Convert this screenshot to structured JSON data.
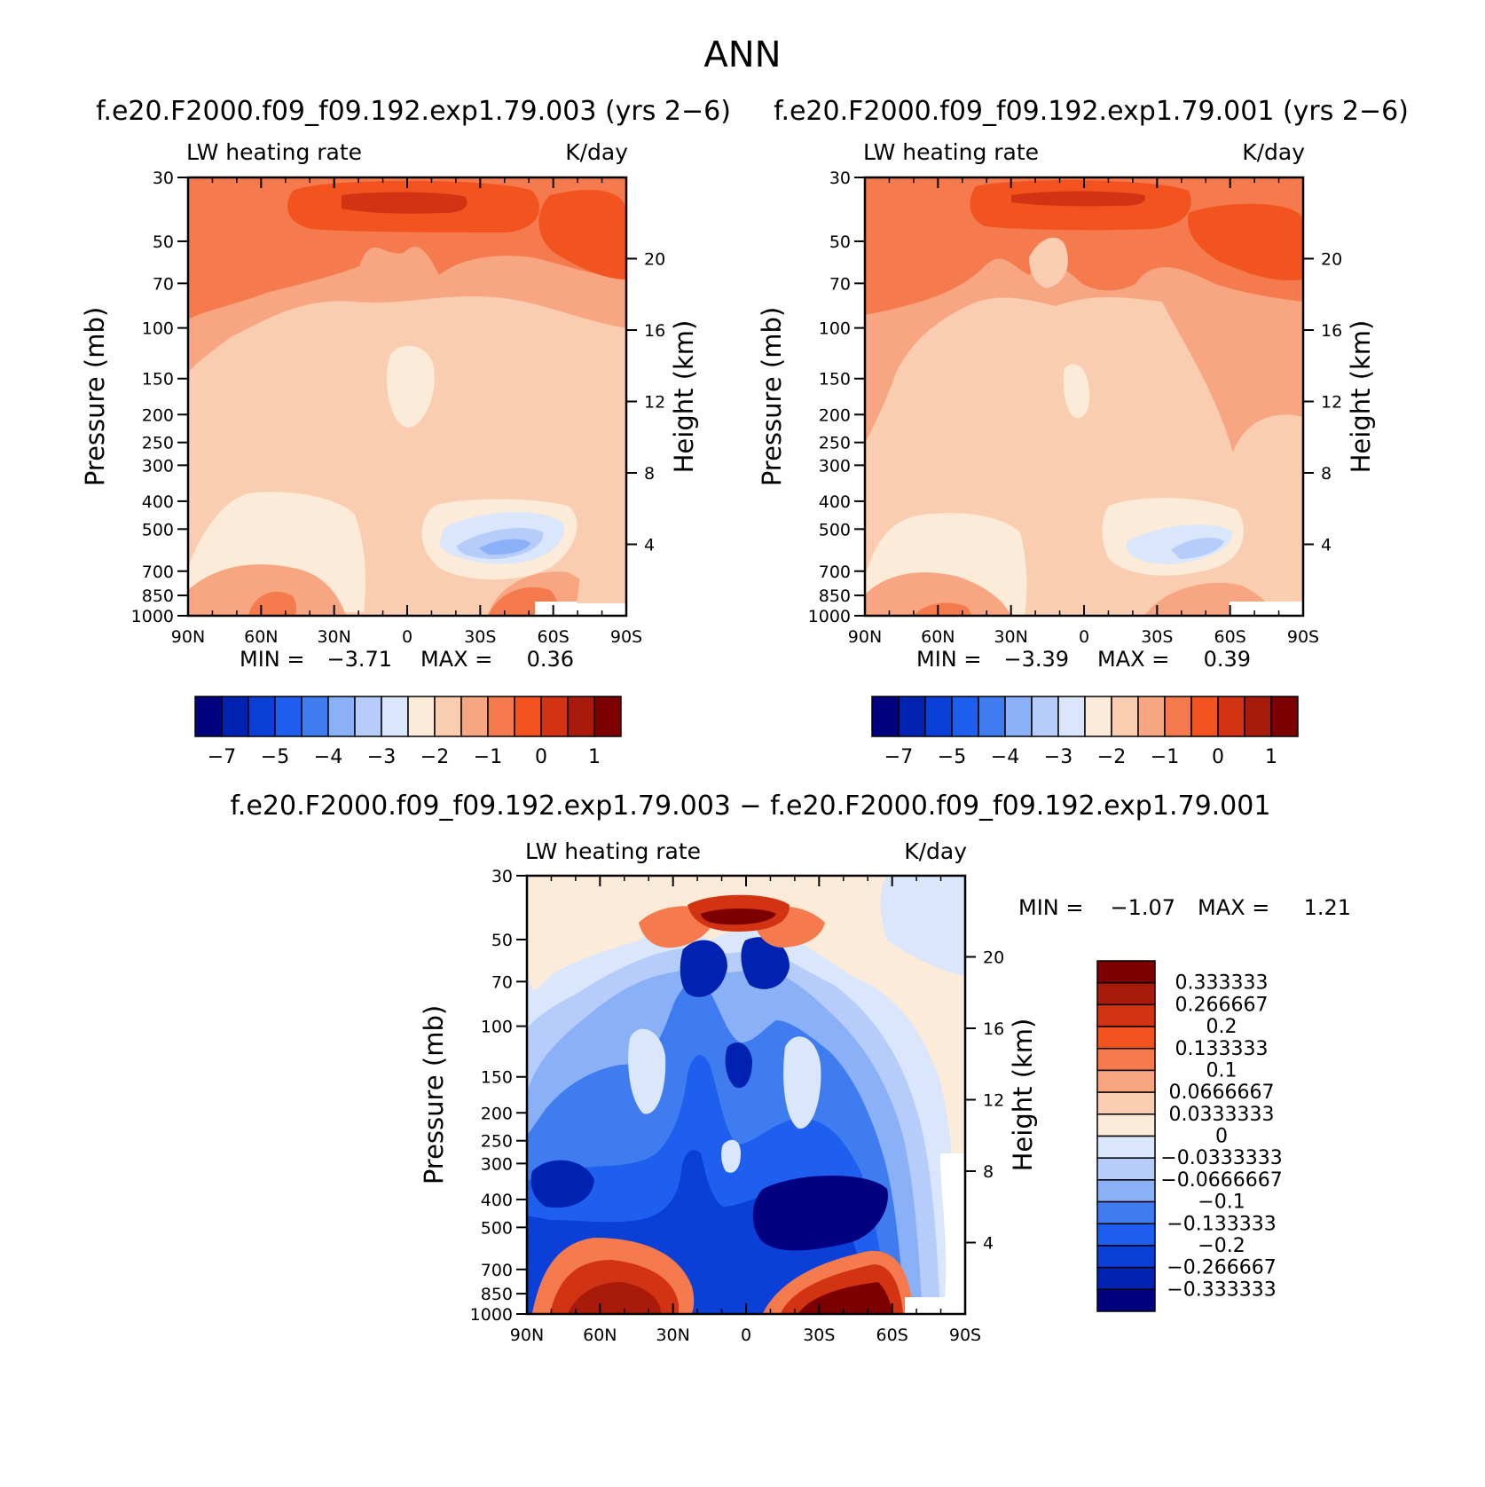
{
  "main_title": "ANN",
  "colors": {
    "ramp_abs": [
      "#000080",
      "#0022b0",
      "#0a3fd8",
      "#1f5ff0",
      "#3f7cf0",
      "#8ab0f8",
      "#b6ccfa",
      "#d9e6fb",
      "#fdebda",
      "#fbcdb0",
      "#f8a682",
      "#f57a4d",
      "#f2531f",
      "#d23312",
      "#a81a0a",
      "#7d0000"
    ],
    "ramp_diff": [
      "#000080",
      "#0022b0",
      "#0a3fd8",
      "#1f5ff0",
      "#3f7cf0",
      "#8ab0f8",
      "#b6ccfa",
      "#d9e6fb",
      "#fdebda",
      "#fbcdb0",
      "#f8a682",
      "#f57a4d",
      "#f2531f",
      "#d23312",
      "#a81a0a",
      "#7d0000"
    ]
  },
  "chart_data": [
    {
      "type": "heatmap",
      "title": "f.e20.F2000.f09_f09.192.exp1.79.003 (yrs 2−6)",
      "subtitle_left": "LW heating rate",
      "subtitle_right": "K/day",
      "ylabel": "Pressure (mb)",
      "ylabel_right": "Height (km)",
      "x_ticklabels": [
        "90N",
        "60N",
        "30N",
        "0",
        "30S",
        "60S",
        "90S"
      ],
      "y_ticks": [
        "30",
        "50",
        "70",
        "100",
        "150",
        "200",
        "250",
        "300",
        "400",
        "500",
        "700",
        "850",
        "1000"
      ],
      "y_right_ticks": [
        "20",
        "16",
        "12",
        "8",
        "4"
      ],
      "min_label": "MIN =",
      "min_value": "−3.71",
      "max_label": "MAX =",
      "max_value": "0.36",
      "colorbar_labels": [
        "−7",
        "−5",
        "−4",
        "−3",
        "−2",
        "−1",
        "0",
        "1"
      ]
    },
    {
      "type": "heatmap",
      "title": "f.e20.F2000.f09_f09.192.exp1.79.001 (yrs 2−6)",
      "subtitle_left": "LW heating rate",
      "subtitle_right": "K/day",
      "ylabel": "Pressure (mb)",
      "ylabel_right": "Height (km)",
      "x_ticklabels": [
        "90N",
        "60N",
        "30N",
        "0",
        "30S",
        "60S",
        "90S"
      ],
      "y_ticks": [
        "30",
        "50",
        "70",
        "100",
        "150",
        "200",
        "250",
        "300",
        "400",
        "500",
        "700",
        "850",
        "1000"
      ],
      "y_right_ticks": [
        "20",
        "16",
        "12",
        "8",
        "4"
      ],
      "min_label": "MIN =",
      "min_value": "−3.39",
      "max_label": "MAX =",
      "max_value": "0.39",
      "colorbar_labels": [
        "−7",
        "−5",
        "−4",
        "−3",
        "−2",
        "−1",
        "0",
        "1"
      ]
    },
    {
      "type": "heatmap",
      "title": "f.e20.F2000.f09_f09.192.exp1.79.003 − f.e20.F2000.f09_f09.192.exp1.79.001",
      "subtitle_left": "LW heating rate",
      "subtitle_right": "K/day",
      "ylabel": "Pressure (mb)",
      "ylabel_right": "Height (km)",
      "x_ticklabels": [
        "90N",
        "60N",
        "30N",
        "0",
        "30S",
        "60S",
        "90S"
      ],
      "y_ticks": [
        "30",
        "50",
        "70",
        "100",
        "150",
        "200",
        "250",
        "300",
        "400",
        "500",
        "700",
        "850",
        "1000"
      ],
      "y_right_ticks": [
        "20",
        "16",
        "12",
        "8",
        "4"
      ],
      "min_label": "MIN =",
      "min_value": "−1.07",
      "max_label": "MAX =",
      "max_value": "1.21",
      "colorbar_labels": [
        "0.333333",
        "0.266667",
        "0.2",
        "0.133333",
        "0.1",
        "0.0666667",
        "0.0333333",
        "0",
        "−0.0333333",
        "−0.0666667",
        "−0.1",
        "−0.133333",
        "−0.2",
        "−0.266667",
        "−0.333333"
      ]
    }
  ]
}
